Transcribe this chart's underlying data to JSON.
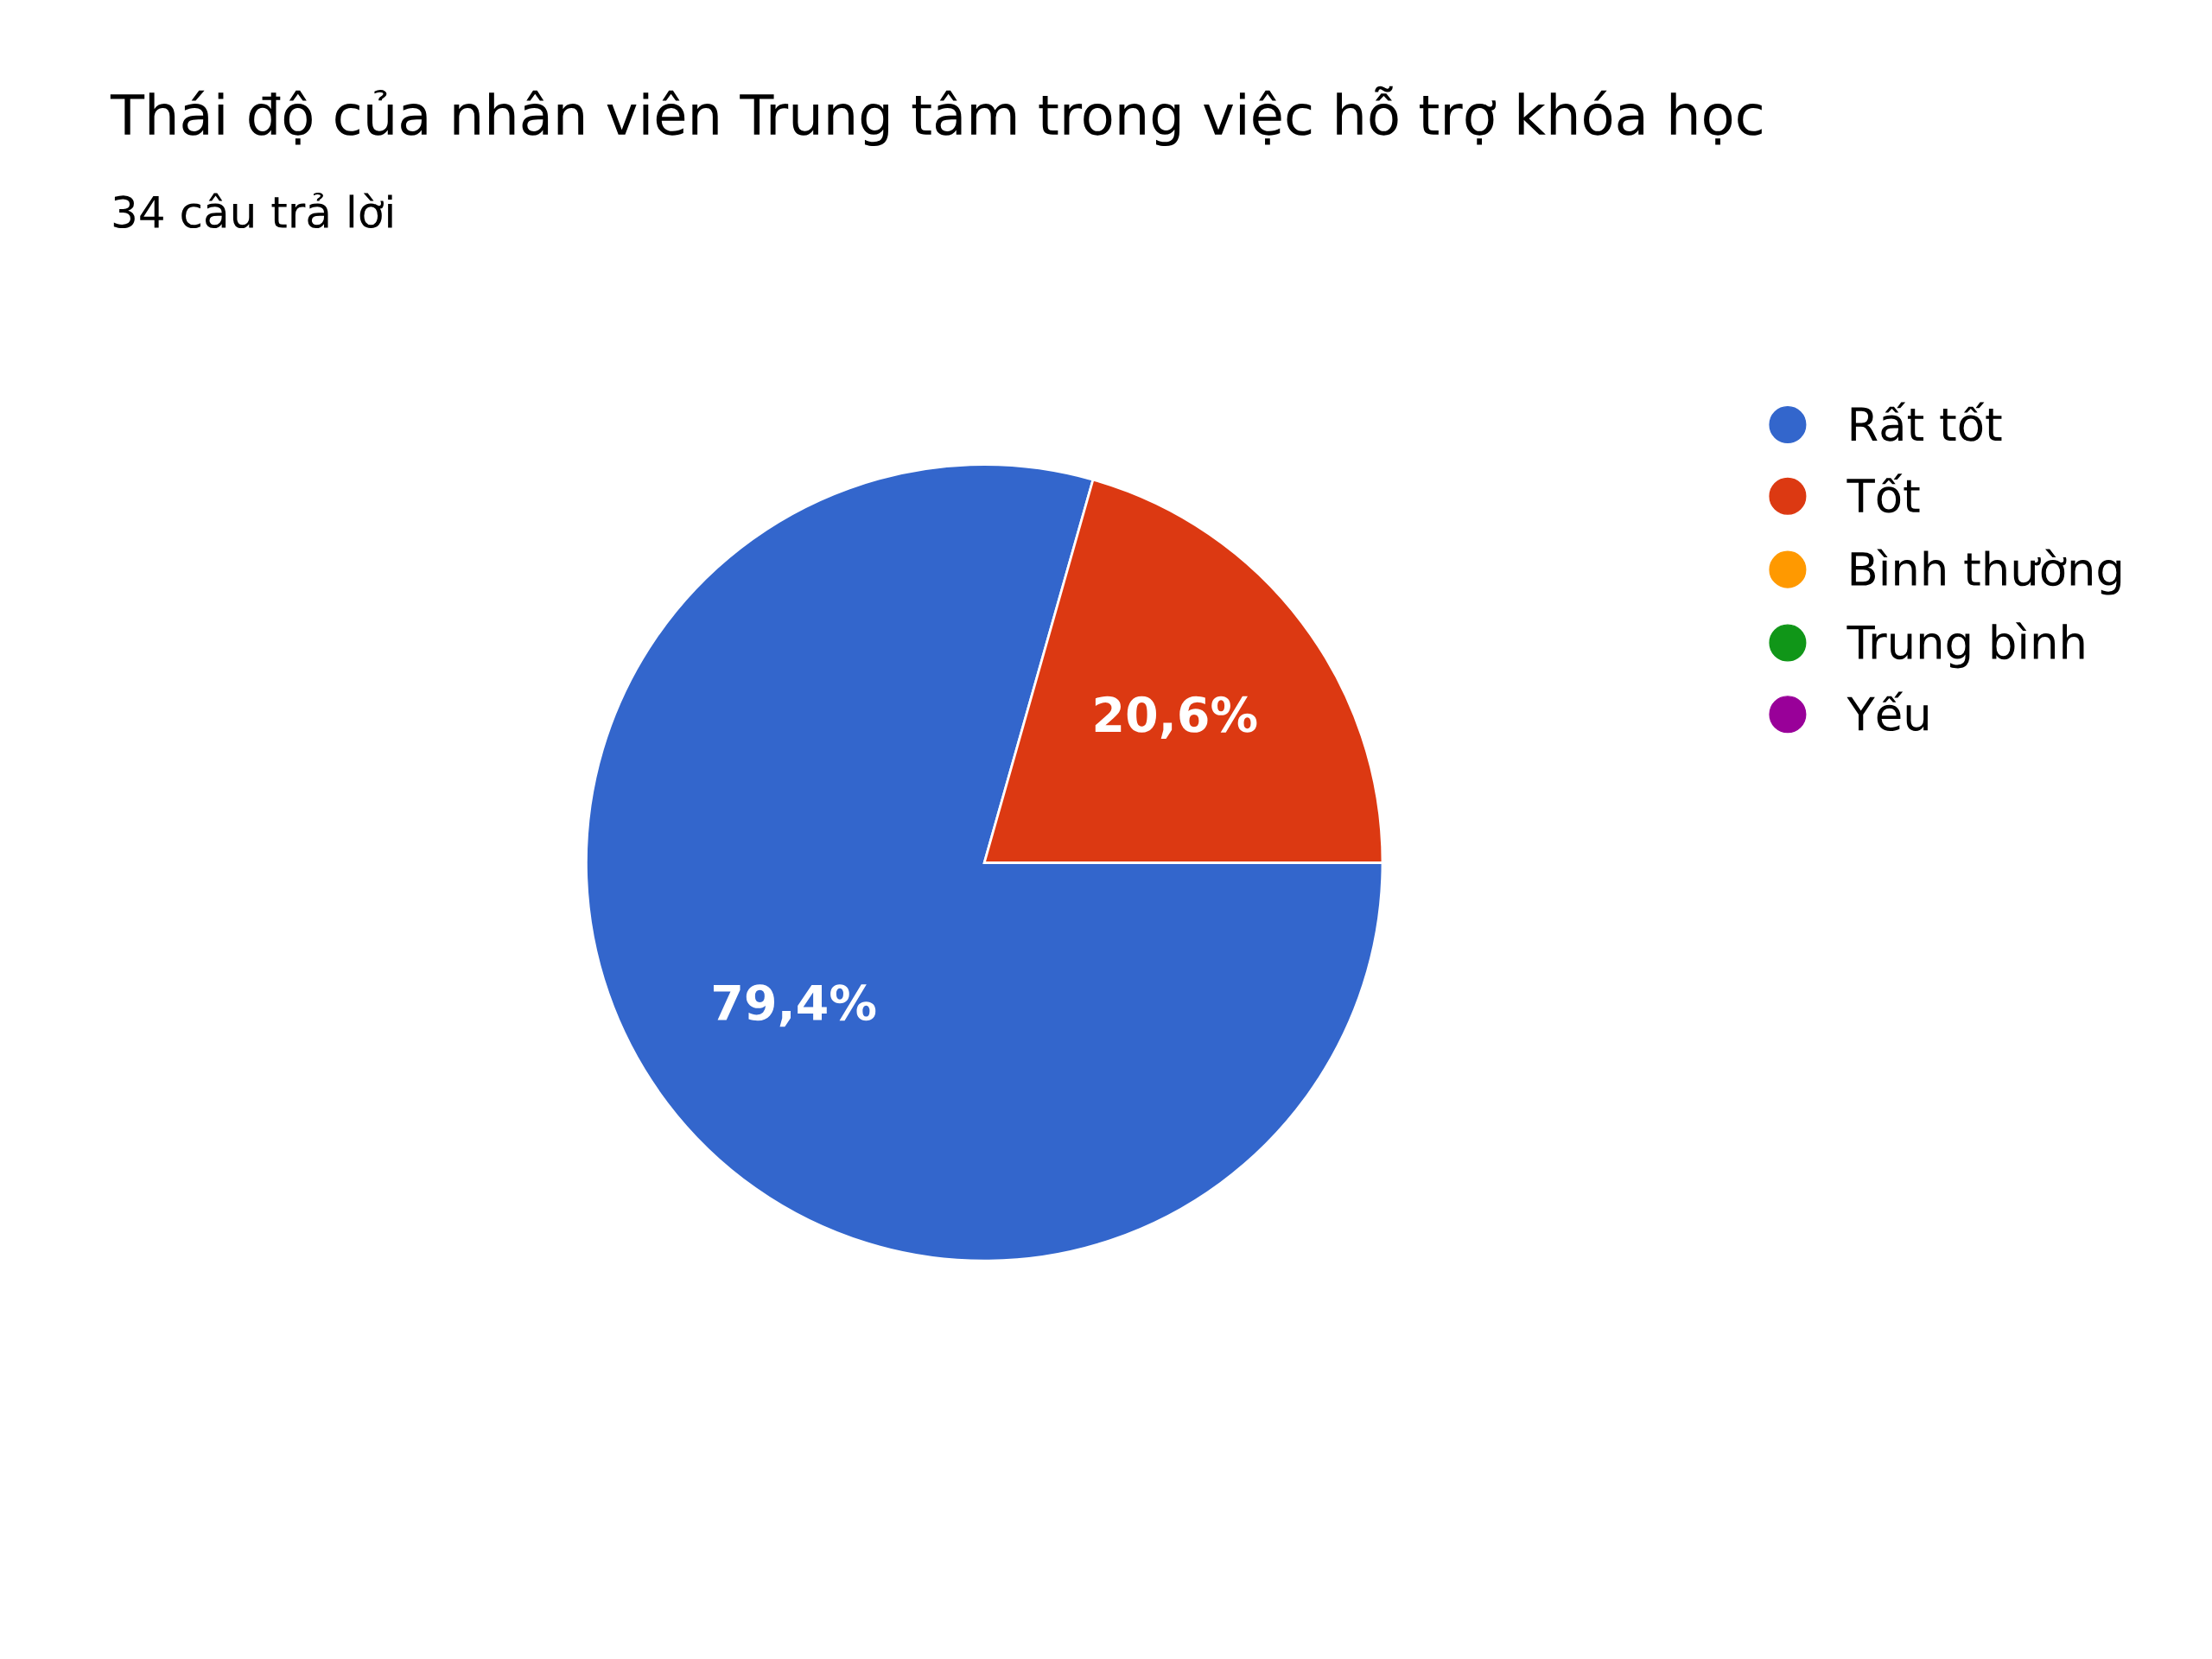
{
  "chart_data": {
    "type": "pie",
    "title": "Thái độ của nhân viên Trung tâm trong việc hỗ trợ khóa học",
    "subtitle": "34 câu trả lời",
    "categories": [
      "Rất tốt",
      "Tốt",
      "Bình thường",
      "Trung bình",
      "Yếu"
    ],
    "values": [
      79.4,
      20.6,
      0,
      0,
      0
    ],
    "value_labels": [
      "79,4%",
      "20,6%",
      null,
      null,
      null
    ],
    "colors": [
      "#3366cc",
      "#dc3912",
      "#ff9900",
      "#109618",
      "#990099"
    ],
    "legend": "right"
  }
}
